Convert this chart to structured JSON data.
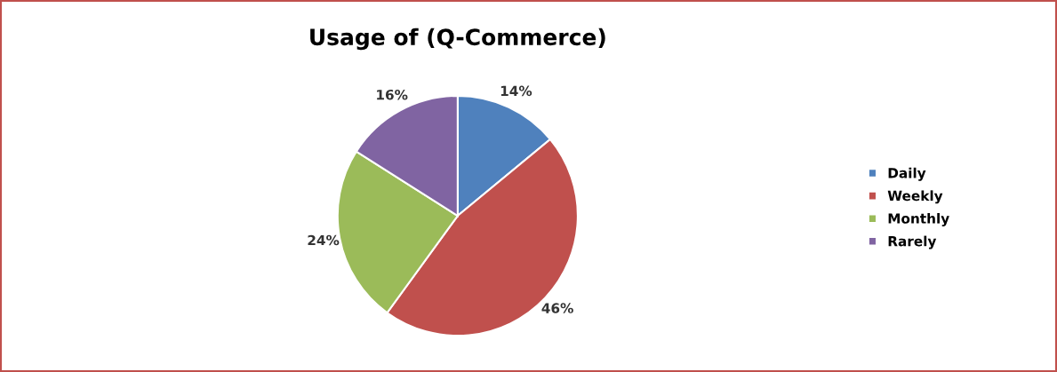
{
  "chart_data": {
    "type": "pie",
    "title": "Usage of (Q-Commerce)",
    "categories": [
      "Daily",
      "Weekly",
      "Monthly",
      "Rarely"
    ],
    "values": [
      14,
      46,
      24,
      16
    ],
    "colors": [
      "#4f81bd",
      "#c0504d",
      "#9bbb59",
      "#8064a2"
    ],
    "value_labels": [
      "14%",
      "46%",
      "24%",
      "16%"
    ],
    "legend": "right"
  }
}
